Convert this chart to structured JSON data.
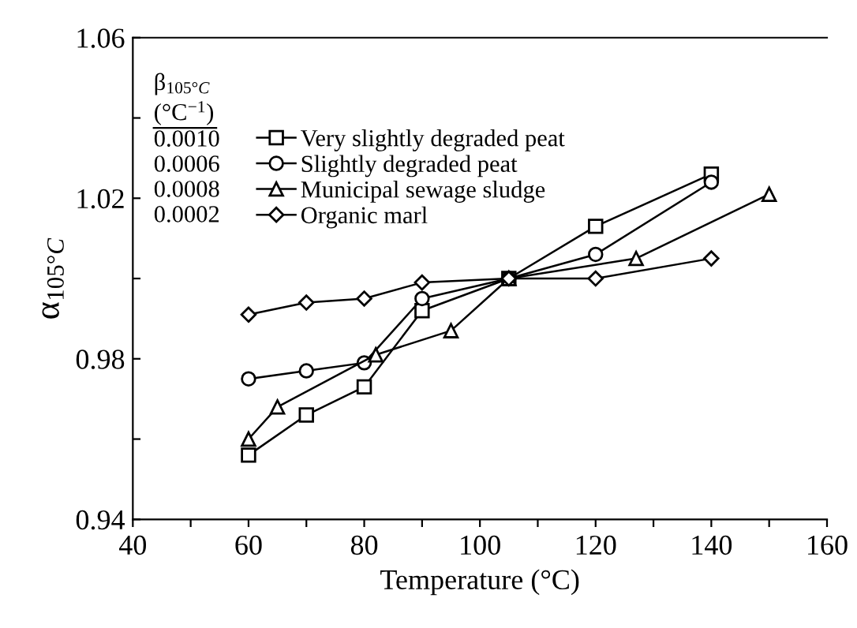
{
  "chart_data": {
    "type": "line",
    "xlabel": "Temperature (°C)",
    "ylabel": "α$_{105°C}$",
    "legend_title": "β$_{105°C}$\n(°C$^{−1}$)",
    "annotations": [
      "0.0010",
      "0.0006",
      "0.0008",
      "0.0002"
    ],
    "series": [
      {
        "name": "Very slightly degraded peat",
        "color": "#000000",
        "marker": "square",
        "x": [
          60,
          70,
          80,
          90,
          105,
          120,
          140
        ],
        "values": [
          0.956,
          0.966,
          0.973,
          0.992,
          1.0,
          1.013,
          1.026
        ]
      },
      {
        "name": "Slightly degraded peat",
        "color": "#000000",
        "marker": "circle",
        "x": [
          60,
          70,
          80,
          90,
          105,
          120,
          140
        ],
        "values": [
          0.975,
          0.977,
          0.979,
          0.995,
          1.0,
          1.006,
          1.024
        ]
      },
      {
        "name": "Municipal sewage sludge",
        "color": "#000000",
        "marker": "triangle",
        "x": [
          60,
          65,
          82,
          95,
          105,
          127,
          150
        ],
        "values": [
          0.96,
          0.968,
          0.981,
          0.987,
          1.0,
          1.005,
          1.021
        ]
      },
      {
        "name": "Organic marl",
        "color": "#000000",
        "marker": "diamond",
        "x": [
          60,
          70,
          80,
          90,
          105,
          120,
          140
        ],
        "values": [
          0.991,
          0.994,
          0.995,
          0.999,
          1.0,
          1.0,
          1.005
        ]
      }
    ],
    "xlim": [
      40,
      160
    ],
    "xticks": [
      40,
      {
        "value": 50,
        "label": null
      },
      60,
      {
        "value": 70,
        "label": null
      },
      80,
      {
        "value": 90,
        "label": null
      },
      100,
      {
        "value": 110,
        "label": null
      },
      120,
      {
        "value": 130,
        "label": null
      },
      140,
      {
        "value": 150,
        "label": null
      },
      160
    ],
    "ylim": [
      0.94,
      1.06
    ],
    "yticks": [
      0.94,
      {
        "value": 0.96,
        "label": null
      },
      0.98,
      {
        "value": 1.0,
        "label": null
      },
      1.02,
      {
        "value": 1.04,
        "label": null
      },
      1.06
    ],
    "grid": false,
    "legend": "top left",
    "line_style": "solid"
  }
}
